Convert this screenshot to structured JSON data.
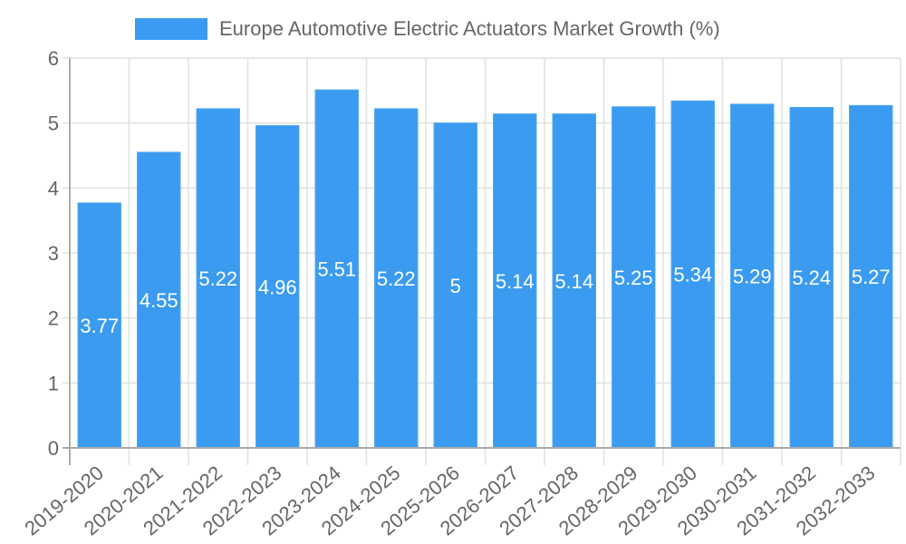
{
  "legend": {
    "label": "Europe Automotive Electric Actuators Market Growth (%)",
    "color": "#3a9bf0"
  },
  "chart_data": {
    "type": "bar",
    "title": "",
    "xlabel": "",
    "ylabel": "",
    "ylim": [
      0,
      6
    ],
    "yticks": [
      0,
      1,
      2,
      3,
      4,
      5,
      6
    ],
    "grid": true,
    "legend_position": "top",
    "categories": [
      "2019-2020",
      "2020-2021",
      "2021-2022",
      "2022-2023",
      "2023-2024",
      "2024-2025",
      "2025-2026",
      "2026-2027",
      "2027-2028",
      "2028-2029",
      "2029-2030",
      "2030-2031",
      "2031-2032",
      "2032-2033"
    ],
    "series": [
      {
        "name": "Europe Automotive Electric Actuators Market Growth (%)",
        "color": "#3a9bf0",
        "values": [
          3.77,
          4.55,
          5.22,
          4.96,
          5.51,
          5.22,
          5,
          5.14,
          5.14,
          5.25,
          5.34,
          5.29,
          5.24,
          5.27
        ],
        "labels": [
          "3.77",
          "4.55",
          "5.22",
          "4.96",
          "5.51",
          "5.22",
          "5",
          "5.14",
          "5.14",
          "5.25",
          "5.34",
          "5.29",
          "5.24",
          "5.27"
        ]
      }
    ]
  }
}
